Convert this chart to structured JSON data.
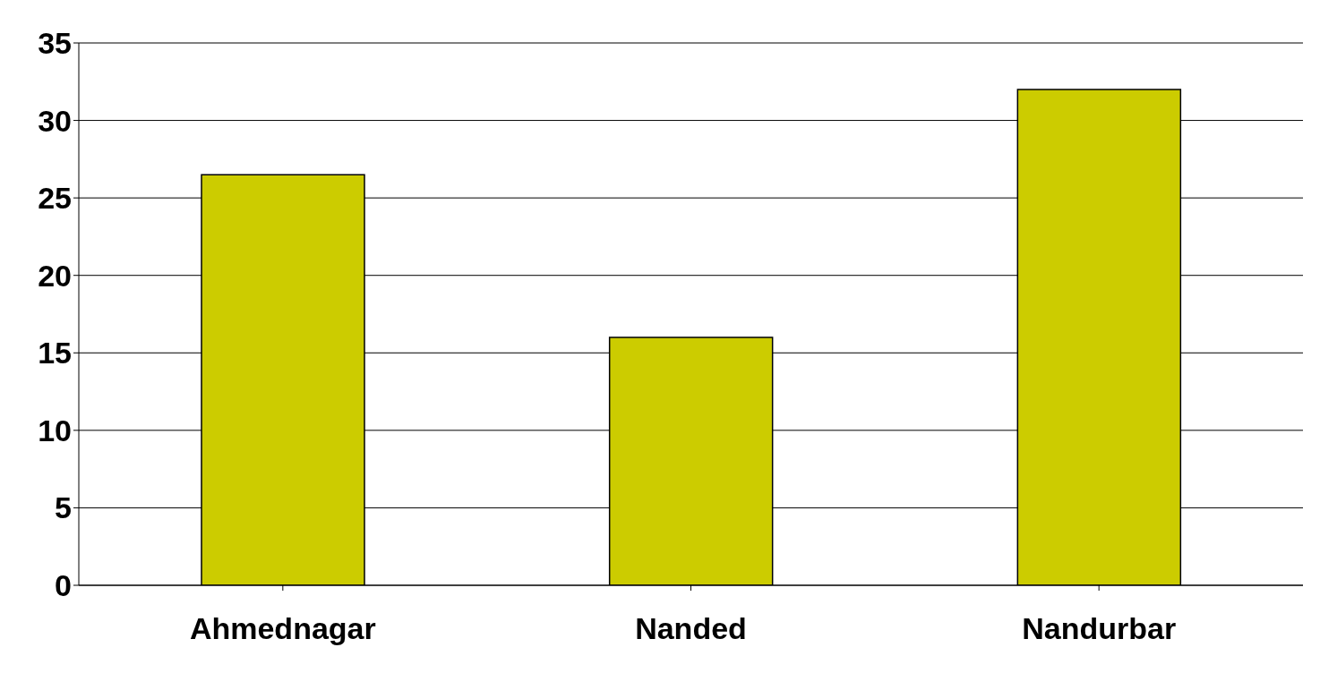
{
  "chart_data": {
    "type": "bar",
    "categories": [
      "Ahmednagar",
      "Nanded",
      "Nandurbar"
    ],
    "values": [
      26.5,
      16,
      32
    ],
    "color": "#cccc00",
    "ylim": [
      0,
      35
    ],
    "yticks": [
      0,
      5,
      10,
      15,
      20,
      25,
      30,
      35
    ],
    "grid": "y"
  }
}
